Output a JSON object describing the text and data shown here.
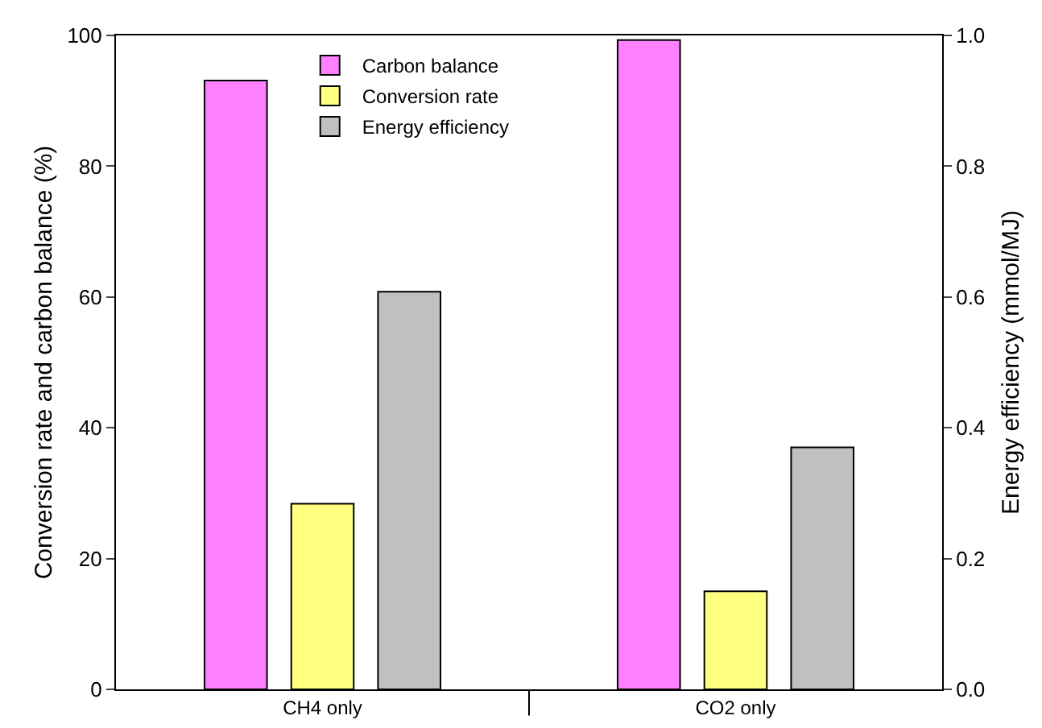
{
  "chart_data": {
    "type": "bar",
    "ylabel": "Conversion rate and carbon balance (%)",
    "y2label": "Energy efficiency (mmol/MJ)",
    "categories": [
      "CH4 only",
      "CO2 only"
    ],
    "series": [
      {
        "name": "Carbon balance",
        "color": "#ff80ff",
        "values": [
          93.1,
          99.3
        ]
      },
      {
        "name": "Conversion rate",
        "color": "#ffff80",
        "values": [
          28.4,
          15.0
        ]
      },
      {
        "name": "Energy efficiency",
        "color": "#c0c0c0",
        "values": [
          0.608,
          0.37
        ],
        "axis": "y2"
      }
    ],
    "ylim": [
      0,
      100
    ],
    "yticks": [
      0,
      20,
      40,
      60,
      80,
      100
    ],
    "y2lim": [
      0,
      1
    ],
    "y2ticks": [
      {
        "value": 0,
        "label": "0.0"
      },
      {
        "value": 0.2,
        "label": "0.2"
      },
      {
        "value": 0.4,
        "label": "0.4"
      },
      {
        "value": 0.6,
        "label": "0.6"
      },
      {
        "value": 0.8,
        "label": "0.8"
      },
      {
        "value": 1,
        "label": "1.0"
      }
    ],
    "legend": "top",
    "grid": false
  }
}
